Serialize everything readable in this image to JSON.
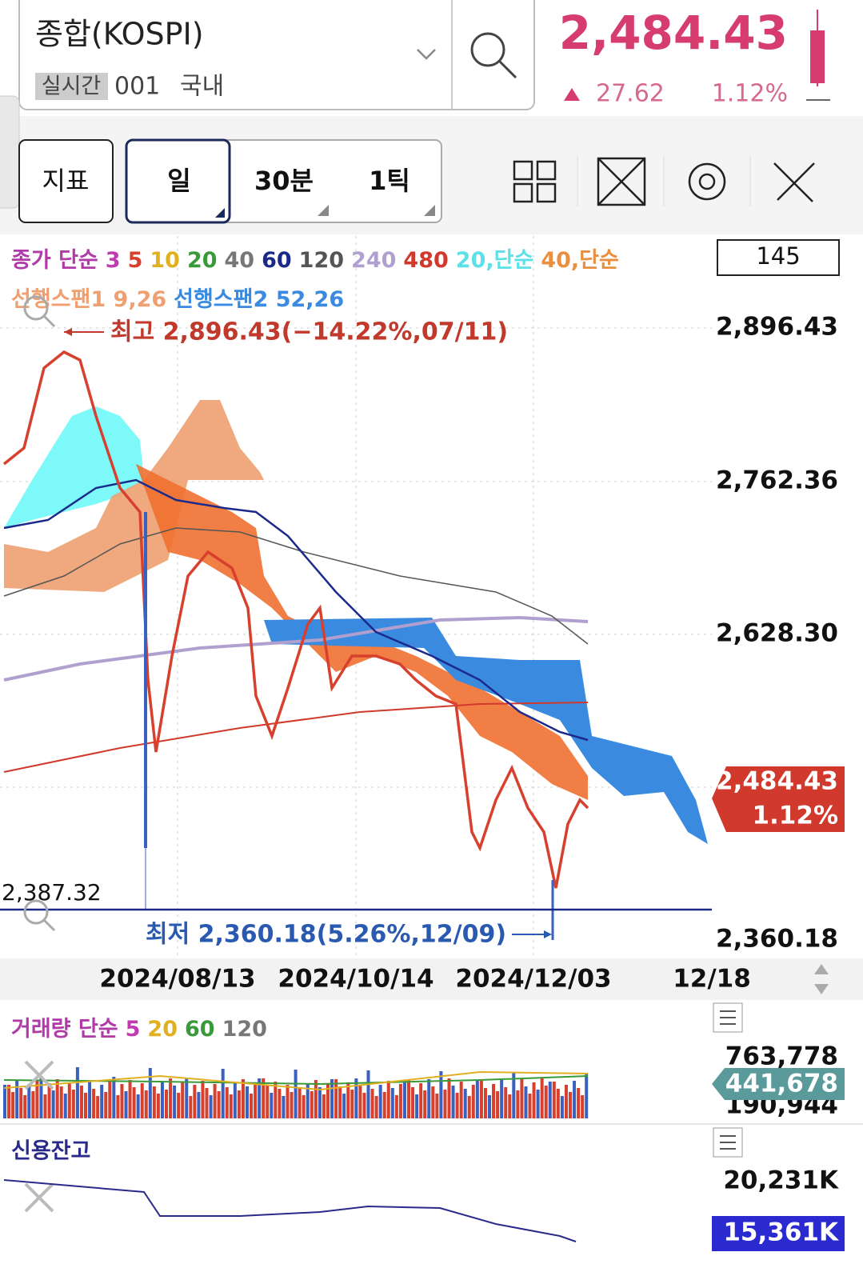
{
  "header": {
    "title": "종합(KOSPI)",
    "badge": "실시간",
    "code": "001",
    "market": "국내",
    "price": "2,484.43",
    "change": "27.62",
    "change_pct": "1.12%"
  },
  "toolbar": {
    "indicator": "지표",
    "periods": [
      "일",
      "30분",
      "1틱"
    ]
  },
  "chart": {
    "legend": {
      "label": "종가 단순",
      "label_color": "#b03aa8",
      "items": [
        {
          "label": "3",
          "color": "#c03ab0"
        },
        {
          "label": "5",
          "color": "#d8402e"
        },
        {
          "label": "10",
          "color": "#e0b020"
        },
        {
          "label": "20",
          "color": "#3a9a3a"
        },
        {
          "label": "40",
          "color": "#777777"
        },
        {
          "label": "60",
          "color": "#1b2a8a"
        },
        {
          "label": "120",
          "color": "#555555"
        },
        {
          "label": "240",
          "color": "#b0a0d0"
        },
        {
          "label": "480",
          "color": "#d0392b"
        },
        {
          "label": "20,단순",
          "color": "#5de0e8"
        },
        {
          "label": "40,단순",
          "color": "#e89040"
        }
      ]
    },
    "legend2": [
      {
        "label": "선행스팬1 9,26",
        "color": "#f0a070"
      },
      {
        "label": "선행스팬2 52,26",
        "color": "#3a8ae0"
      }
    ],
    "count": "145",
    "price_labels": [
      "2,896.43",
      "2,762.36",
      "2,628.30",
      "2,360.18"
    ],
    "current_price": "2,484.43",
    "current_pct": "1.12%",
    "high_note": "최고 2,896.43(−14.22%,07/11)",
    "low_note": "최저 2,360.18(5.26%,12/09)",
    "line_label": "2,387.32",
    "dates": [
      "2024/08/13",
      "2024/10/14",
      "2024/12/03",
      "12/18"
    ]
  },
  "volume": {
    "label": "거래량 단순",
    "label_color": "#b03aa8",
    "items": [
      {
        "label": "5",
        "color": "#c03ab0"
      },
      {
        "label": "20",
        "color": "#e0b020"
      },
      {
        "label": "60",
        "color": "#3a9a3a"
      },
      {
        "label": "120",
        "color": "#777777"
      }
    ],
    "top": "763,778",
    "current": "441,678",
    "bottom": "190,944"
  },
  "credit": {
    "label": "신용잔고",
    "top": "20,231K",
    "current": "15,361K"
  }
}
